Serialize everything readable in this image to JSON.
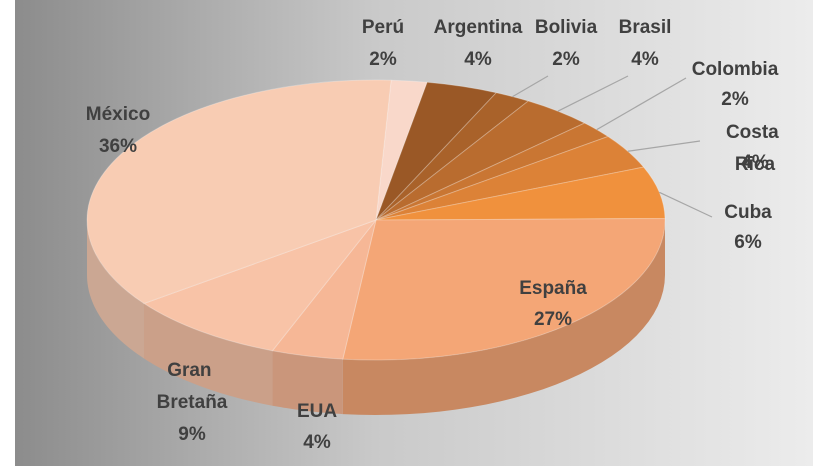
{
  "chart_data": {
    "type": "pie3d",
    "categories": [
      "Perú",
      "Argentina",
      "Bolivia",
      "Brasil",
      "Colombia",
      "Costa Rica",
      "Cuba",
      "España",
      "EUA",
      "Gran Bretaña",
      "México"
    ],
    "values": [
      2,
      4,
      2,
      4,
      2,
      4,
      6,
      27,
      4,
      9,
      36
    ],
    "value_labels": [
      "2%",
      "4%",
      "2%",
      "4%",
      "2%",
      "4%",
      "6%",
      "27%",
      "4%",
      "9%",
      "36%"
    ],
    "colors": [
      "#f9d8ca",
      "#9a5826",
      "#a9622a",
      "#b96c2f",
      "#c97633",
      "#dc8237",
      "#f0913d",
      "#f4a676",
      "#f6b796",
      "#f8c3a7",
      "#f8ccb3"
    ]
  }
}
